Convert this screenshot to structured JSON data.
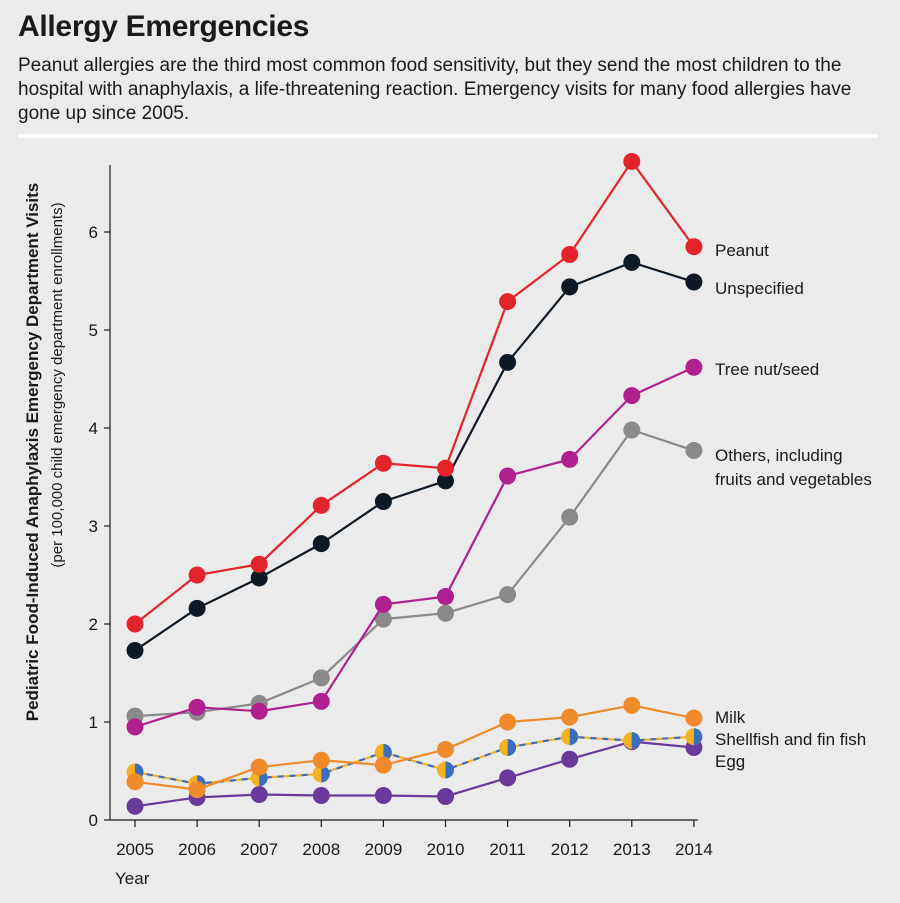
{
  "title": "Allergy Emergencies",
  "subtitle": "Peanut allergies are the third most common food sensitivity, but they send the most children to the hospital with anaphylaxis, a life-threatening reaction. Emergency visits for many food allergies have gone up since 2005.",
  "chart_data": {
    "type": "line",
    "title": "Allergy Emergencies",
    "xlabel": "Year",
    "ylabel": "Pediatric Food-Induced Anaphylaxis Emergency Department Visits",
    "ylabel_sub": "(per 100,000 child emergency department enrollments)",
    "x": [
      2005,
      2006,
      2007,
      2008,
      2009,
      2010,
      2011,
      2012,
      2013,
      2014
    ],
    "xticks": [
      "2005",
      "2006",
      "2007",
      "2008",
      "2009",
      "2010",
      "2011",
      "2012",
      "2013",
      "2014"
    ],
    "yticks": [
      "0",
      "1",
      "2",
      "3",
      "4",
      "5",
      "6"
    ],
    "ylim": [
      0,
      6.8
    ],
    "series": [
      {
        "name": "Others, including fruits and vegetables",
        "legend": [
          "Others, including",
          "fruits and vegetables"
        ],
        "color": "#8a8a8a",
        "values": [
          1.06,
          1.1,
          1.19,
          1.45,
          2.05,
          2.11,
          2.3,
          3.09,
          3.98,
          3.77
        ]
      },
      {
        "name": "Tree nut/seed",
        "legend": [
          "Tree nut/seed"
        ],
        "color": "#b0208e",
        "values": [
          0.95,
          1.15,
          1.11,
          1.21,
          2.2,
          2.28,
          3.51,
          3.68,
          4.33,
          4.62
        ]
      },
      {
        "name": "Egg",
        "legend": [
          "Egg"
        ],
        "color": "#6a3a9a",
        "values": [
          0.14,
          0.23,
          0.26,
          0.25,
          0.25,
          0.24,
          0.43,
          0.62,
          0.8,
          0.74
        ]
      },
      {
        "name": "Shellfish and fin fish",
        "legend": [
          "Shellfish and fin fish"
        ],
        "color": "#3a6fc0",
        "color2": "#f4b223",
        "dashed": true,
        "values": [
          0.49,
          0.37,
          0.43,
          0.47,
          0.69,
          0.51,
          0.74,
          0.85,
          0.81,
          0.85
        ]
      },
      {
        "name": "Milk",
        "legend": [
          "Milk"
        ],
        "color": "#f08a2a",
        "values": [
          0.39,
          0.31,
          0.54,
          0.61,
          0.56,
          0.72,
          1.0,
          1.05,
          1.17,
          1.04
        ]
      },
      {
        "name": "Unspecified",
        "legend": [
          "Unspecified"
        ],
        "color": "#0d1a26",
        "values": [
          1.73,
          2.16,
          2.47,
          2.82,
          3.25,
          3.46,
          4.67,
          5.44,
          5.69,
          5.49
        ]
      },
      {
        "name": "Peanut",
        "legend": [
          "Peanut"
        ],
        "color": "#e3242b",
        "values": [
          2.0,
          2.5,
          2.61,
          3.21,
          3.64,
          3.59,
          5.29,
          5.77,
          6.72,
          5.85
        ]
      }
    ]
  }
}
